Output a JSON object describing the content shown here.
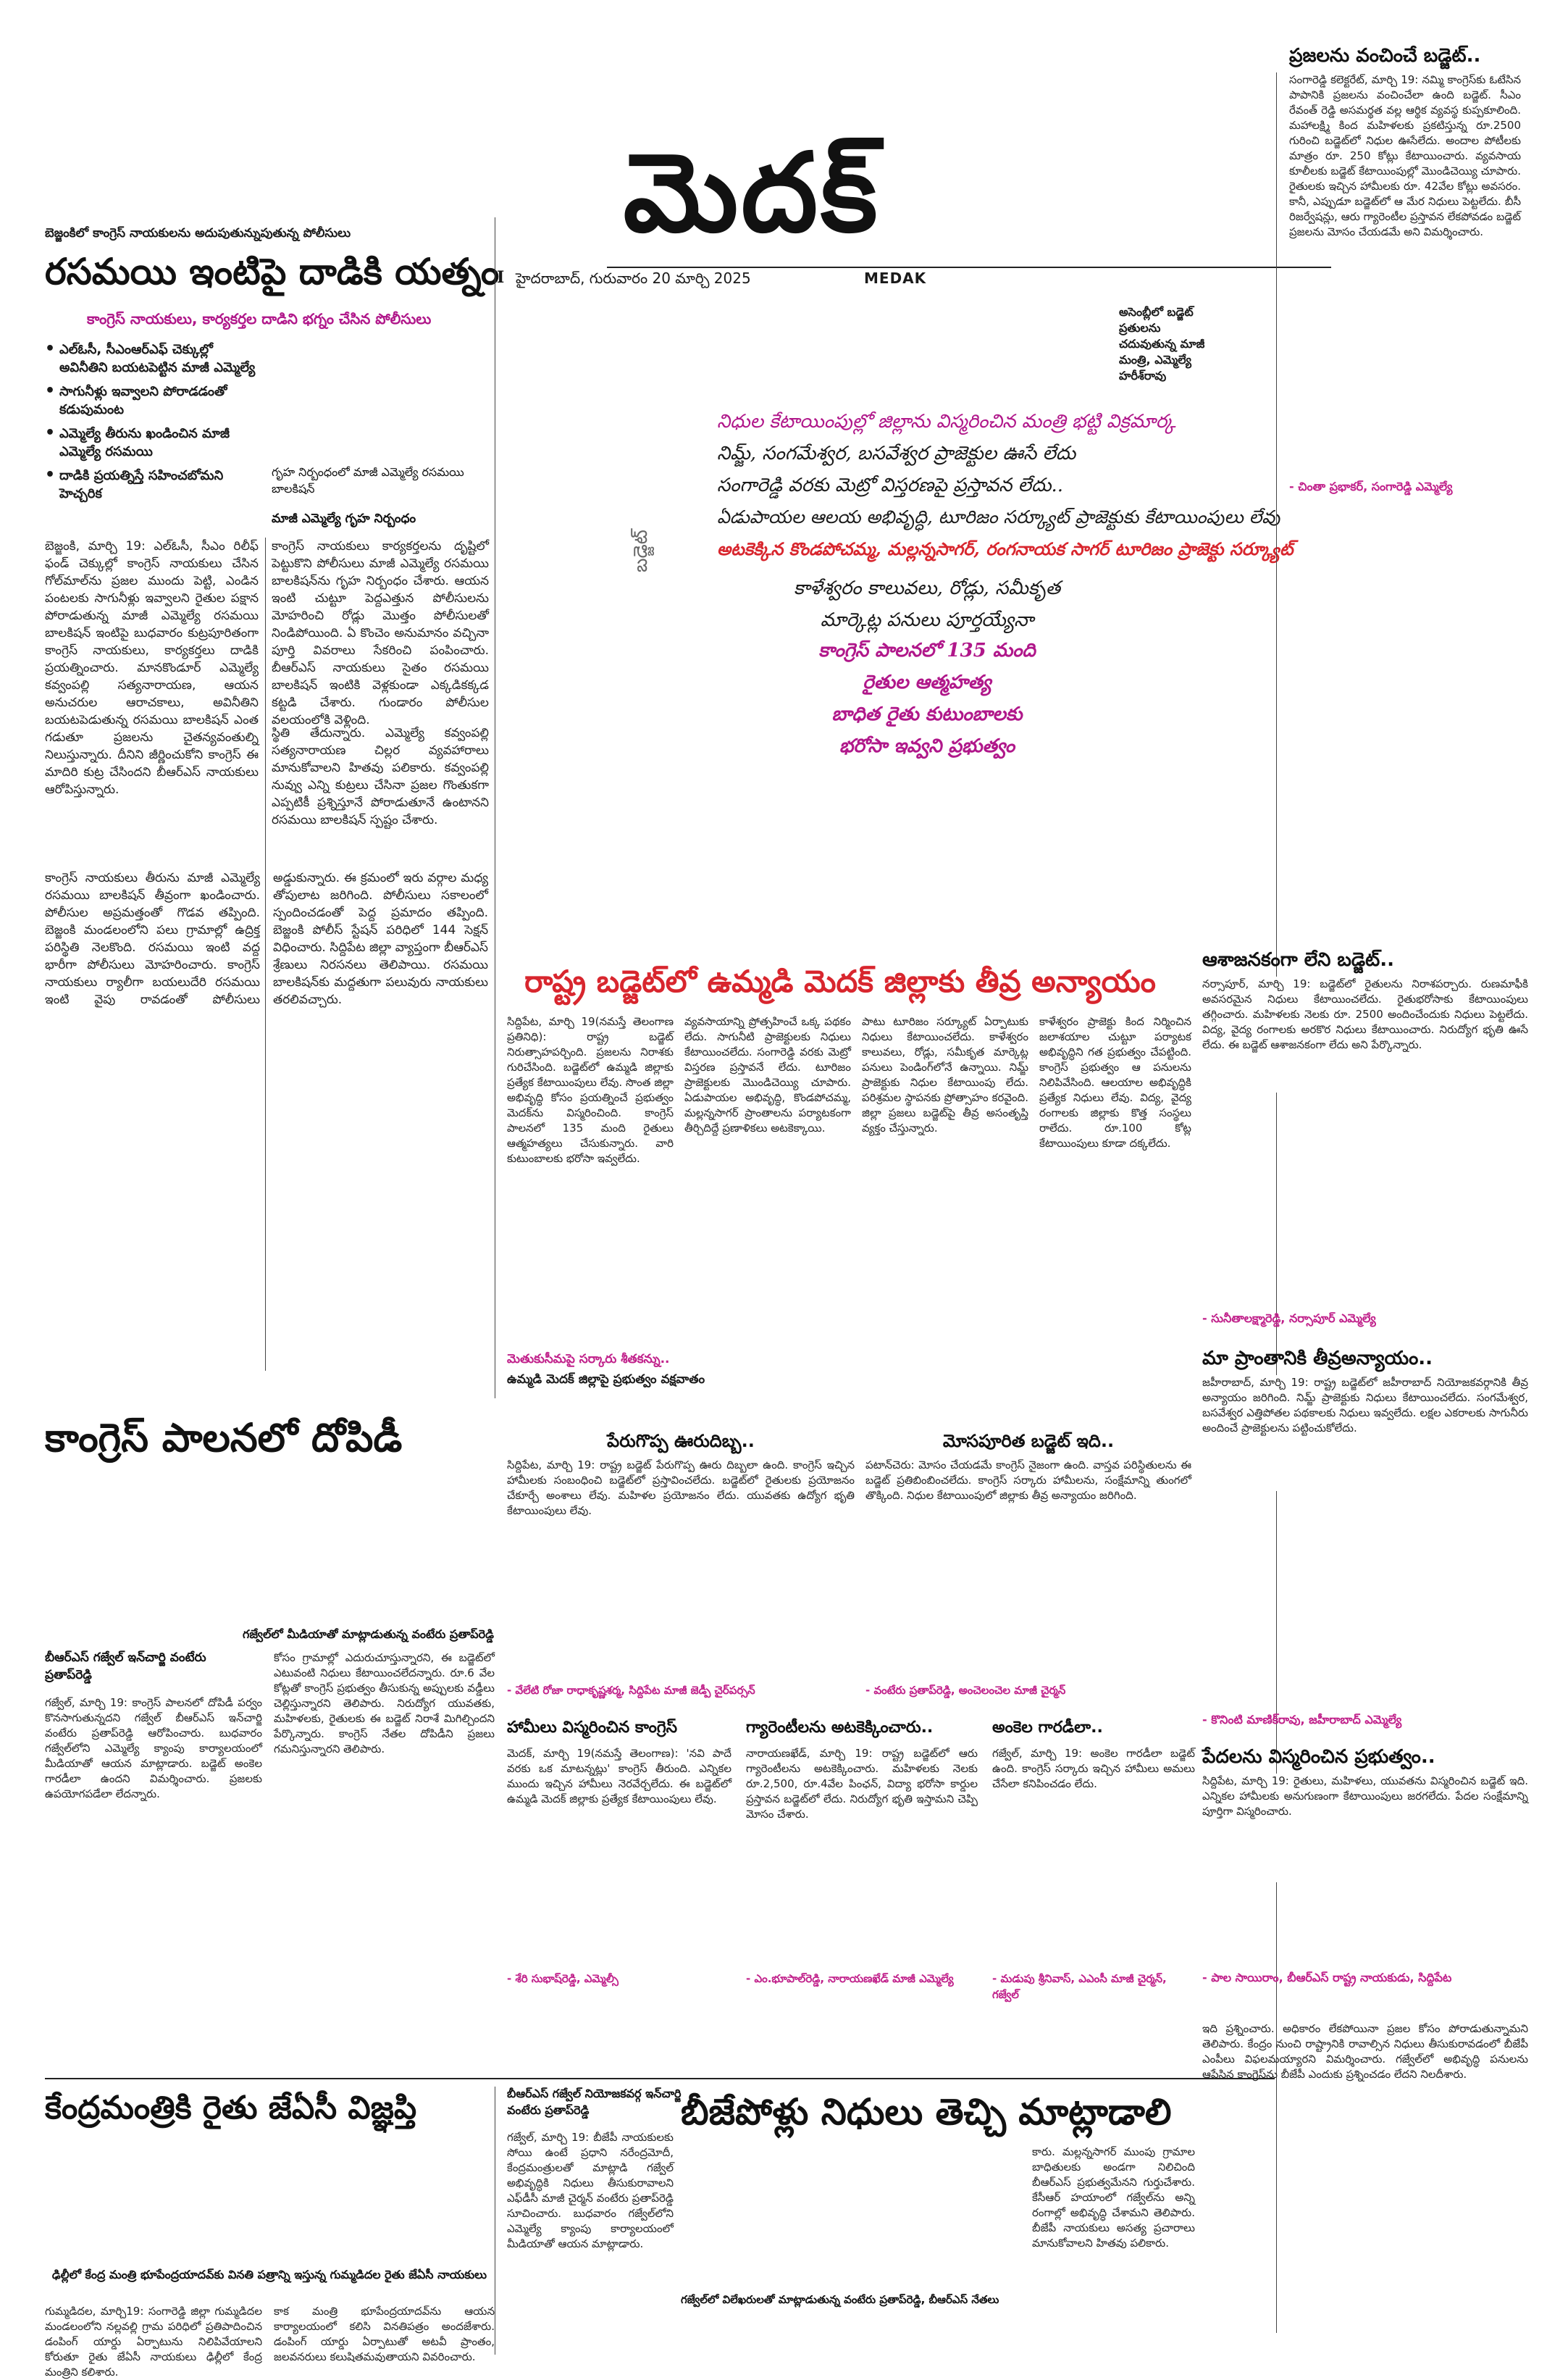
{
  "masthead": {
    "title": "మెదక్",
    "dateline": "హైదరాబాద్, గురువారం 20 మార్చి 2025",
    "section": "MEDAK"
  },
  "lead": {
    "kicker": "బెజ్జంకిలో కాంగ్రెస్ నాయకులను అదుపుతున్నుపుతున్న పోలీసులు",
    "headline": "రసమయి ఇంటిపై దాడికి యత్నం",
    "subhead": "కాంగ్రెస్ నాయకులు, కార్యకర్తల దాడిని భగ్నం చేసిన పోలీసులు",
    "bullets": [
      "ఎల్ఓసీ, సీఎంఆర్ఎఫ్ చెక్కుల్లో అవినీతిని బయటపెట్టిన మాజీ ఎమ్మెల్యే",
      "సాగునీళ్లు ఇవ్వాలని పోరాడడంతో కడుపుమంట",
      "ఎమ్మెల్యే తీరును ఖండించిన మాజీ ఎమ్మెల్యే రసమయి",
      "దాడికి ప్రయత్నిస్తే సహించబోమని హెచ్చరిక"
    ],
    "photo_caption": "గృహ నిర్బంధంలో మాజీ ఎమ్మెల్యే రసమయి బాలకిషన్",
    "photo_caption2": "మాజీ ఎమ్మెల్యే గృహ నిర్బంధం",
    "body1": "బెజ్జంకి, మార్చి 19: ఎల్ఓసీ, సీఎం రిలీఫ్ ఫండ్ చెక్కుల్లో కాంగ్రెస్ నాయకులు చేసిన గోల్‌మాల్‌ను ప్రజల ముందు పెట్టి, ఎండిన పంటలకు సాగునీళ్లు ఇవ్వాలని రైతుల పక్షాన పోరాడుతున్న మాజీ ఎమ్మెల్యే రసమయి బాలకిషన్ ఇంటిపై బుధవారం కుట్రపూరితంగా కాంగ్రెస్ నాయకులు, కార్యకర్తలు దాడికి ప్రయత్నించారు. మానకొండూర్ ఎమ్మెల్యే కవ్వంపల్లి సత్యనారాయణ, ఆయన అనుచరుల ఆరాచకాలు, అవినీతిని బయటపెడుతున్న రసమయి బాలకిషన్ ఎంత గడుతూ ప్రజలను చైతన్యవంతుల్ని నిలుస్తున్నారు. దీనిని జీర్ణించుకోని కాంగ్రెస్ ఈ మాదిరి కుట్ర చేసిందని బీఆర్ఎస్ నాయకులు ఆరోపిస్తున్నారు.",
    "body2": "కాంగ్రెస్ నాయకులు కార్యకర్తలను దృష్టిలో పెట్టుకొని పోలీసులు మాజీ ఎమ్మెల్యే రసమయి బాలకిషన్‌ను గృహ నిర్బంధం చేశారు. ఆయన ఇంటి చుట్టూ పెద్దఎత్తున పోలీసులను మోహరించి రోడ్లు మొత్తం పోలీసులతో నిండిపోయింది. ఏ కొంచెం అనుమానం వచ్చినా పూర్తి వివరాలు సేకరించి పంపించారు. బీఆర్ఎస్ నాయకులు సైతం రసమయి బాలకిషన్ ఇంటికి వెళ్లకుండా ఎక్కడికక్కడ కట్టడి చేశారు. గుండారం పోలీసుల వలయంలోకి వెళ్లింది.",
    "body3": "స్థితి తేదున్నారు. ఎమ్మెల్యే కవ్వంపల్లి సత్యనారాయణ చిల్లర వ్యవహారాలు మానుకోవాలని హితవు పలికారు. కవ్వంపల్లి నువ్వు ఎన్ని కుట్రలు చేసినా ప్రజల గొంతుకగా ఎప్పటికీ ప్రశ్నిస్తూనే పోరాడుతూనే ఉంటానని రసమయి బాలకిషన్ స్పష్టం చేశారు.",
    "body4": "కాంగ్రెస్ నాయకులు తీరును మాజీ ఎమ్మెల్యే రసమయి బాలకిషన్ తీవ్రంగా ఖండించారు. పోలీసుల అప్రమత్తంతో గొడవ తప్పింది. బెజ్జంకి మండలంలోని పలు గ్రామాల్లో ఉద్రిక్త పరిస్థితి నెలకొంది. రసమయి ఇంటి వద్ద భారీగా పోలీసులు మోహరించారు. కాంగ్రెస్ నాయకులు ర్యాలీగా బయలుదేరి రసమయి ఇంటి వైపు రావడంతో పోలీసులు అడ్డుకున్నారు. ఈ క్రమంలో ఇరు వర్గాల మధ్య తోపులాట జరిగింది. పోలీసులు సకాలంలో స్పందించడంతో పెద్ద ప్రమాదం తప్పింది. బెజ్జంకి పోలీస్ స్టేషన్ పరిధిలో 144 సెక్షన్ విధించారు. సిద్దిపేట జిల్లా వ్యాప్తంగా బీఆర్ఎస్ శ్రేణులు నిరసనలు తెలిపాయి. రసమయి బాలకిషన్‌కు మద్దతుగా పలువురు నాయకులు తరలివచ్చారు."
  },
  "budget": {
    "vertical_label": "బడ్జెట్",
    "small_caption": "అసెంబ్లీలో బడ్జెట్ ప్రతులను చదువుతున్న మాజీ మంత్రి, ఎమ్మెల్యే హరీశ్‌రావు",
    "deck": [
      "నిధుల కేటాయింపుల్లో జిల్లాను విస్మరించిన మంత్రి భట్టి విక్రమార్క",
      "నిమ్జ్, సంగమేశ్వర, బసవేశ్వర ప్రాజెక్టుల ఊసే లేదు",
      "సంగారెడ్డి వరకు మెట్రో విస్తరణపై ప్రస్తావన లేదు..",
      "ఏడుపాయల ఆలయ అభివృద్ధి, టూరిజం సర్క్యూట్ ప్రాజెక్టుకు కేటాయింపులు లేవు",
      "అటకెక్కిన కొండపోచమ్మ, మల్లన్నసాగర్, రంగనాయక సాగర్ టూరిజం ప్రాజెక్టు సర్క్యూట్",
      "కాళేశ్వరం కాలువలు, రోడ్లు, సమీకృత",
      "మార్కెట్ల పనులు పూర్తయ్యేనా",
      "కాంగ్రెస్ పాలనలో 135 మంది",
      "రైతుల ఆత్మహత్య",
      "బాధిత రైతు కుటుంబాలకు",
      "భరోసా ఇవ్వని ప్రభుత్వం"
    ]
  },
  "right_col": {
    "h1": "ప్రజలను వంచించే బడ్జెట్..",
    "t1": "సంగారెడ్డి కలెక్టరేట్, మార్చి 19: నమ్మి కాంగ్రెస్‌కు ఓటేసిన పాపానికి ప్రజలను వంచించేలా ఉంది బడ్జెట్. సీఎం రేవంత్ రెడ్డి అసమర్థత వల్ల ఆర్థిక వ్యవస్థ కుప్పకూలింది. మహాలక్ష్మి కింద మహిళలకు ప్రకటిస్తున్న రూ.2500 గురించి బడ్జెట్‌లో నిధుల ఊసేలేదు. అందాల పోటీలకు మాత్రం రూ. 250 కోట్లు కేటాయించారు. వ్యవసాయ కూలీలకు బడ్జెట్ కేటాయింపుల్లో మొండిచెయ్యి చూపారు. రైతులకు ఇచ్చిన హామీలకు రూ. 42వేల కోట్లు అవసరం. కానీ, ఎప్పుడూ బడ్జెట్‌లో ఆ మేర నిధులు పెట్టలేదు. బీసీ రిజర్వేషన్లు, ఆరు గ్యారెంటీల ప్రస్తావన లేకపోవడం బడ్జెట్ ప్రజలను మోసం చేయడమే అని విమర్శించారు.",
    "q1": "- చింతా ప్రభాకర్, సంగారెడ్డి ఎమ్మెల్యే",
    "h2": "ఆశాజనకంగా లేని బడ్జెట్..",
    "t2": "నర్సాపూర్, మార్చి 19: బడ్జెట్‌లో రైతులను నిరాశపర్చారు. రుణమాఫీకి అవసరమైన నిధులు కేటాయించలేదు. రైతుభరోసాకు కేటాయింపులు తగ్గించారు. మహిళలకు నెలకు రూ. 2500 అందించేందుకు నిధులు పెట్టలేదు. విద్య, వైద్య రంగాలకు అరకొర నిధులు కేటాయించారు. నిరుద్యోగ భృతి ఊసే లేదు. ఈ బడ్జెట్ ఆశాజనకంగా లేదు అని పేర్కొన్నారు.",
    "q2": "- సునీతాలక్ష్మారెడ్డి, నర్సాపూర్ ఎమ్మెల్యే",
    "h3": "మా ప్రాంతానికి తీవ్రఅన్యాయం..",
    "t3": "జహీరాబాద్, మార్చి 19: రాష్ట్ర బడ్జెట్‌లో జహీరాబాద్ నియోజకవర్గానికి తీవ్ర అన్యాయం జరిగింది. నిమ్జ్ ప్రాజెక్టుకు నిధులు కేటాయించలేదు. సంగమేశ్వర, బసవేశ్వర ఎత్తిపోతల పథకాలకు నిధులు ఇవ్వలేదు. లక్షల ఎకరాలకు సాగునీరు అందించే ప్రాజెక్టులను పట్టించుకోలేదు.",
    "q3": "- కొనింటి మాణిక్‌రావు, జహీరాబాద్ ఎమ్మెల్యే",
    "h4": "పేదలను విస్మరించిన ప్రభుత్వం..",
    "t4": "సిద్దిపేట, మార్చి 19: రైతులు, మహిళలు, యువతను విస్మరించిన బడ్జెట్ ఇది. ఎన్నికల హామీలకు అనుగుణంగా కేటాయింపులు జరగలేదు. పేదల సంక్షేమాన్ని పూర్తిగా విస్మరించారు.",
    "q4": "- పాల సాయిరాం, బీఆర్ఎస్ రాష్ట్ర నాయకుడు, సిద్దిపేట"
  },
  "injustice": {
    "headline": "రాష్ట్ర బడ్జెట్‌లో ఉమ్మడి మెదక్ జిల్లాకు తీవ్ర అన్యాయం",
    "body1": "సిద్దిపేట, మార్చి 19(నమస్తే తెలంగాణ ప్రతినిధి): రాష్ట్ర బడ్జెట్ నిరుత్సాహపర్చింది. ప్రజలను నిరాశకు గురిచేసింది. బడ్జెట్‌లో ఉమ్మడి జిల్లాకు ప్రత్యేక కేటాయింపులు లేవు. సొంత జిల్లా అభివృద్ధి కోసం ప్రయత్నించే ప్రభుత్వం మెదక్‌ను విస్మరించింది. కాంగ్రెస్ పాలనలో 135 మంది రైతులు ఆత్మహత్యలు చేసుకున్నారు. వారి కుటుంబాలకు భరోసా ఇవ్వలేదు.",
    "body2": "వ్యవసాయాన్ని ప్రోత్సహించే ఒక్క పథకం లేదు. సాగునీటి ప్రాజెక్టులకు నిధులు కేటాయించలేదు. సంగారెడ్డి వరకు మెట్రో విస్తరణ ప్రస్తావనే లేదు. టూరిజం ప్రాజెక్టులకు మొండిచెయ్యి చూపారు. ఏడుపాయల అభివృద్ధి, కొండపోచమ్మ, మల్లన్నసాగర్ ప్రాంతాలను పర్యాటకంగా తీర్చిదిద్దే ప్రణాళికలు అటకెక్కాయి.",
    "body3": "పాటు టూరిజం సర్క్యూట్ ఏర్పాటుకు నిధులు కేటాయించలేదు. కాళేశ్వరం కాలువలు, రోడ్లు, సమీకృత మార్కెట్ల పనులు పెండింగ్‌లోనే ఉన్నాయి. నిమ్జ్ ప్రాజెక్టుకు నిధుల కేటాయింపు లేదు. పరిశ్రమల స్థాపనకు ప్రోత్సాహం కరవైంది. జిల్లా ప్రజలు బడ్జెట్‌పై తీవ్ర అసంతృప్తి వ్యక్తం చేస్తున్నారు.",
    "body4": "కాళేశ్వరం ప్రాజెక్టు కింద నిర్మించిన జలాశయాల చుట్టూ పర్యాటక అభివృద్ధిని గత ప్రభుత్వం చేపట్టింది. కాంగ్రెస్ ప్రభుత్వం ఆ పనులను నిలిపివేసింది. ఆలయాల అభివృద్ధికి ప్రత్యేక నిధులు లేవు. విద్య, వైద్య రంగాలకు జిల్లాకు కొత్త సంస్థలు రాలేదు. రూ.100 కోట్ల కేటాయింపులు కూడా దక్కలేదు.",
    "caption": "మెతుకుసీమపై సర్కారు శీతకన్ను..",
    "caption2": "ఉమ్మడి మెదక్ జిల్లాపై ప్రభుత్వం వక్షవాతం"
  },
  "peru": {
    "h": "పేరుగొప్ప ఊరుదిబ్బ..",
    "t": "సిద్దిపేట, మార్చి 19: రాష్ట్ర బడ్జెట్ పేరుగొప్ప ఊరు దిబ్బలా ఉంది. కాంగ్రెస్ ఇచ్చిన హామీలకు సంబంధించి బడ్జెట్‌లో ప్రస్తావించలేదు. బడ్జెట్‌లో రైతులకు ప్రయోజనం చేకూర్చే అంశాలు లేవు. మహిళల ప్రయోజనం లేదు. యువతకు ఉద్యోగ భృతి కేటాయింపులు లేవు.",
    "q": "- వేలేటి రోజా రాధాకృష్ణశర్మ, సిద్దిపేట మాజీ జెడ్పీ చైర్‌పర్సన్"
  },
  "mosa": {
    "h": "మోసపూరిత బడ్జెట్ ఇది..",
    "t": "పటాన్‌చెరు: మోసం చేయడమే కాంగ్రెస్ నైజంగా ఉంది. వాస్తవ పరిస్థితులను ఈ బడ్జెట్ ప్రతిబింబించలేదు. కాంగ్రెస్ సర్కారు హామీలను, సంక్షేమాన్ని తుంగలో తొక్కింది. నిధుల కేటాయింపులో జిల్లాకు తీవ్ర అన్యాయం జరిగింది.",
    "q": "- వంటేరు ప్రతాప్‌రెడ్డి, అంచెలంచెల మాజీ చైర్మన్"
  },
  "dopidi": {
    "headline": "కాంగ్రెస్ పాలనలో దోపిడీ",
    "caption": "గజ్వేల్‌లో మీడియాతో మాట్లాడుతున్న వంటేరు ప్రతాప్‌రెడ్డి",
    "byline": "బీఆర్ఎస్ గజ్వేల్ ఇన్‌చార్జి వంటేరు ప్రతాప్‌రెడ్డి",
    "body1": "గజ్వేల్, మార్చి 19: కాంగ్రెస్ పాలనలో దోపిడీ పర్వం కొనసాగుతున్నదని గజ్వేల్ బీఆర్ఎస్ ఇన్‌చార్జి వంటేరు ప్రతాప్‌రెడ్డి ఆరోపించారు. బుధవారం గజ్వేల్‌లోని ఎమ్మెల్యే క్యాంపు కార్యాలయంలో మీడియాతో ఆయన మాట్లాడారు. బడ్జెట్ అంకెల గారడీలా ఉందని విమర్శించారు. ప్రజలకు ఉపయోగపడేలా లేదన్నారు.",
    "body2": "కోసం గ్రామాల్లో ఎదురుచూస్తున్నారని, ఈ బడ్జెట్‌లో ఎటువంటి నిధులు కేటాయించలేదన్నారు. రూ.6 వేల కోట్లతో కాంగ్రెస్ ప్రభుత్వం తీసుకున్న అప్పులకు వడ్డీలు చెల్లిస్తున్నారని తెలిపారు. నిరుద్యోగ యువతకు, మహిళలకు, రైతులకు ఈ బడ్జెట్ నిరాశే మిగిల్చిందని పేర్కొన్నారు. కాంగ్రెస్ నేతల దోపిడీని ప్రజలు గమనిస్తున్నారని తెలిపారు."
  },
  "guarantees": {
    "h": "గ్యారెంటీలను అటకెక్కించారు..",
    "t": "నారాయణఖేడ్, మార్చి 19: రాష్ట్ర బడ్జెట్‌లో ఆరు గ్యారెంటీలను అటకెక్కించారు. మహిళలకు నెలకు రూ.2,500, రూ.4వేల పింఛన్, విద్యా భరోసా కార్డుల ప్రస్తావన బడ్జెట్‌లో లేదు. నిరుద్యోగ భృతి ఇస్తామని చెప్పి మోసం చేశారు.",
    "q": "- ఎం.భూపాల్‌రెడ్డి, నారాయణఖేడ్ మాజీ ఎమ్మెల్యే"
  },
  "hamilu": {
    "h": "హామీలు విస్మరించిన కాంగ్రెస్",
    "t": "మెదక్, మార్చి 19(నమస్తే తెలంగాణ): 'నవి పాదే వరకు ఒక మాటన్నట్లు' కాంగ్రెస్ తీరుంది. ఎన్నికల ముందు ఇచ్చిన హామీలు నెరవేర్చలేదు. ఈ బడ్జెట్‌లో ఉమ్మడి మెదక్ జిల్లాకు ప్రత్యేక కేటాయింపులు లేవు.",
    "q": "- శేరి సుభాష్‌రెడ్డి, ఎమ్మెల్సీ"
  },
  "ankela": {
    "h": "అంకెల గారడీలా..",
    "t": "గజ్వేల్, మార్చి 19: అంకెల గారడీలా బడ్జెట్ ఉంది. కాంగ్రెస్ సర్కారు ఇచ్చిన హామీలు అమలు చేసేలా కనిపించడం లేదు.",
    "q": "- మడుపు శ్రీనివాస్, ఎఎంసీ మాజీ చైర్మన్, గజ్వేల్"
  },
  "centre": {
    "headline": "కేంద్రమంత్రికి రైతు జేఏసీ విజ్ఞప్తి",
    "caption": "ఢిల్లీలో కేంద్ర మంత్రి భూపేంద్రయాదవ్‌కు వినతి పత్రాన్ని ఇస్తున్న గుమ్మడిదల రైతు జేఏసీ నాయకులు",
    "body1": "గుమ్మడిదల, మార్చి19: సంగారెడ్డి జిల్లా గుమ్మడిదల మండలంలోని నల్లవల్లి గ్రామ పరిధిలో ప్రతిపాదించిన డంపింగ్ యార్డు ఏర్పాటును నిలిపివేయాలని కోరుతూ రైతు జేఏసీ నాయకులు ఢిల్లీలో కేంద్ర మంత్రిని కలిశారు.",
    "body2": "కాక మంత్రి భూపేంద్రయాదవ్‌ను ఆయన కార్యాలయంలో కలిసి వినతిపత్రం అందజేశారు. డంపింగ్ యార్డు ఏర్పాటుతో అటవీ ప్రాంతం, జలవనరులు కలుషితమవుతాయని వివరించారు."
  },
  "bjp": {
    "headline": "బీజేపోళ్లు నిధులు తెచ్చి మాట్లాడాలి",
    "byline": "బీఆర్ఎస్ గజ్వేల్ నియోజకవర్గ ఇన్‌చార్జి వంటేరు ప్రతాప్‌రెడ్డి",
    "caption": "గజ్వేల్‌లో విలేఖరులతో మాట్లాడుతున్న వంటేరు ప్రతాప్‌రెడ్డి, బీఆర్ఎస్ నేతలు",
    "body1": "గజ్వేల్, మార్చి 19: బీజేపీ నాయకులకు సోయి ఉంటే ప్రధాని నరేంద్రమోదీ, కేంద్రమంత్రులతో మాట్లాడి గజ్వేల్ అభివృద్ధికి నిధులు తీసుకురావాలని ఎఫ్‌డీసీ మాజీ చైర్మన్ వంటేరు ప్రతాప్‌రెడ్డి సూచించారు. బుధవారం గజ్వేల్‌లోని ఎమ్మెల్యే క్యాంపు కార్యాలయంలో మీడియాతో ఆయన మాట్లాడారు.",
    "body2": "కారు. మల్లన్నసాగర్ ముంపు గ్రామాల బాధితులకు అండగా నిలిచింది బీఆర్ఎస్ ప్రభుత్వమేనని గుర్తుచేశారు. కేసీఆర్ హయాంలో గజ్వేల్‌ను అన్ని రంగాల్లో అభివృద్ధి చేశామని తెలిపారు. బీజేపీ నాయకులు అసత్య ప్రచారాలు మానుకోవాలని హితవు పలికారు.",
    "body3": "ఇది ప్రశ్నించారు. అధికారం లేకపోయినా ప్రజల కోసం పోరాడుతున్నామని తెలిపారు. కేంద్రం నుంచి రాష్ట్రానికి రావాల్సిన నిధులు తీసుకురావడంలో బీజేపీ ఎంపీలు విఫలమయ్యారని విమర్శించారు. గజ్వేల్‌లో అభివృద్ధి పనులను ఆపేసిన కాంగ్రెస్‌ను బీజేపీ ఎందుకు ప్రశ్నించడం లేదని నిలదీశారు."
  }
}
